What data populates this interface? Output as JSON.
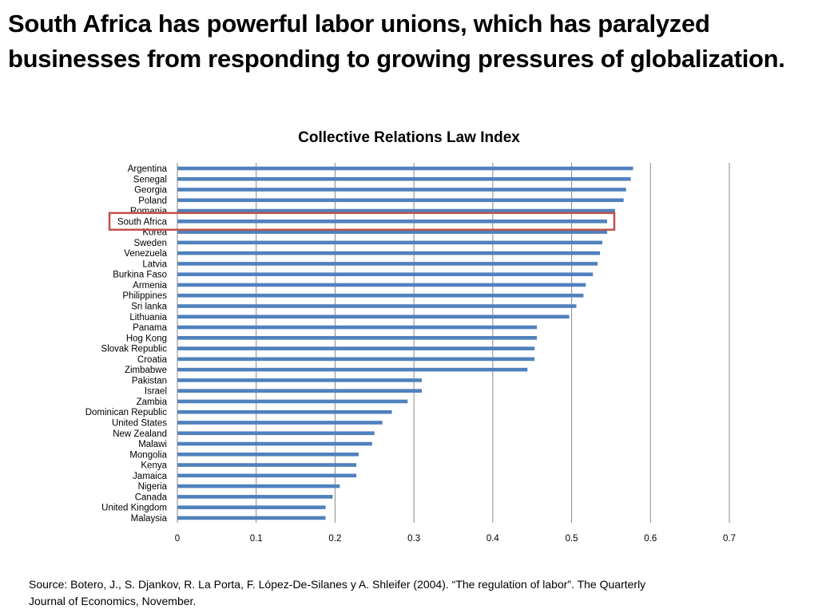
{
  "slide": {
    "title": "South Africa has powerful labor unions, which has paralyzed businesses from responding to growing pressures of globalization.",
    "source": "Source: Botero, J., S. Djankov, R. La Porta, F. López-De-Silanes y A. Shleifer (2004). “The regulation of labor”. The Quarterly Journal of Economics, November."
  },
  "chart_data": {
    "type": "bar",
    "orientation": "horizontal",
    "title": "Collective Relations Law Index",
    "xlabel": "",
    "ylabel": "",
    "xlim": [
      0,
      0.7
    ],
    "x_ticks": [
      "0",
      "0.1",
      "0.2",
      "0.3",
      "0.4",
      "0.5",
      "0.6",
      "0.7"
    ],
    "grid": "vertical major gridlines",
    "legend": "none",
    "bar_color": "#4F81BD",
    "highlight": {
      "category": "South Africa",
      "color": "#C0504D"
    },
    "categories": [
      "Argentina",
      "Senegal",
      "Georgia",
      "Poland",
      "Romania",
      "South Africa",
      "Korea",
      "Sweden",
      "Venezuela",
      "Latvia",
      "Burkina Faso",
      "Armenia",
      "Philippines",
      "Sri lanka",
      "Lithuania",
      "Panama",
      "Hog Kong",
      "Slovak Republic",
      "Croatia",
      "Zimbabwe",
      "Pakistan",
      "Israel",
      "Zambia",
      "Dominican Republic",
      "United States",
      "New Zealand",
      "Malawi",
      "Mongolia",
      "Kenya",
      "Jamaica",
      "Nigeria",
      "Canada",
      "United Kingdom",
      "Malaysia"
    ],
    "values": [
      0.578,
      0.575,
      0.569,
      0.566,
      0.555,
      0.545,
      0.545,
      0.539,
      0.536,
      0.533,
      0.527,
      0.518,
      0.515,
      0.506,
      0.497,
      0.456,
      0.456,
      0.453,
      0.453,
      0.444,
      0.31,
      0.31,
      0.292,
      0.272,
      0.26,
      0.25,
      0.247,
      0.23,
      0.227,
      0.227,
      0.206,
      0.197,
      0.188,
      0.188
    ]
  }
}
